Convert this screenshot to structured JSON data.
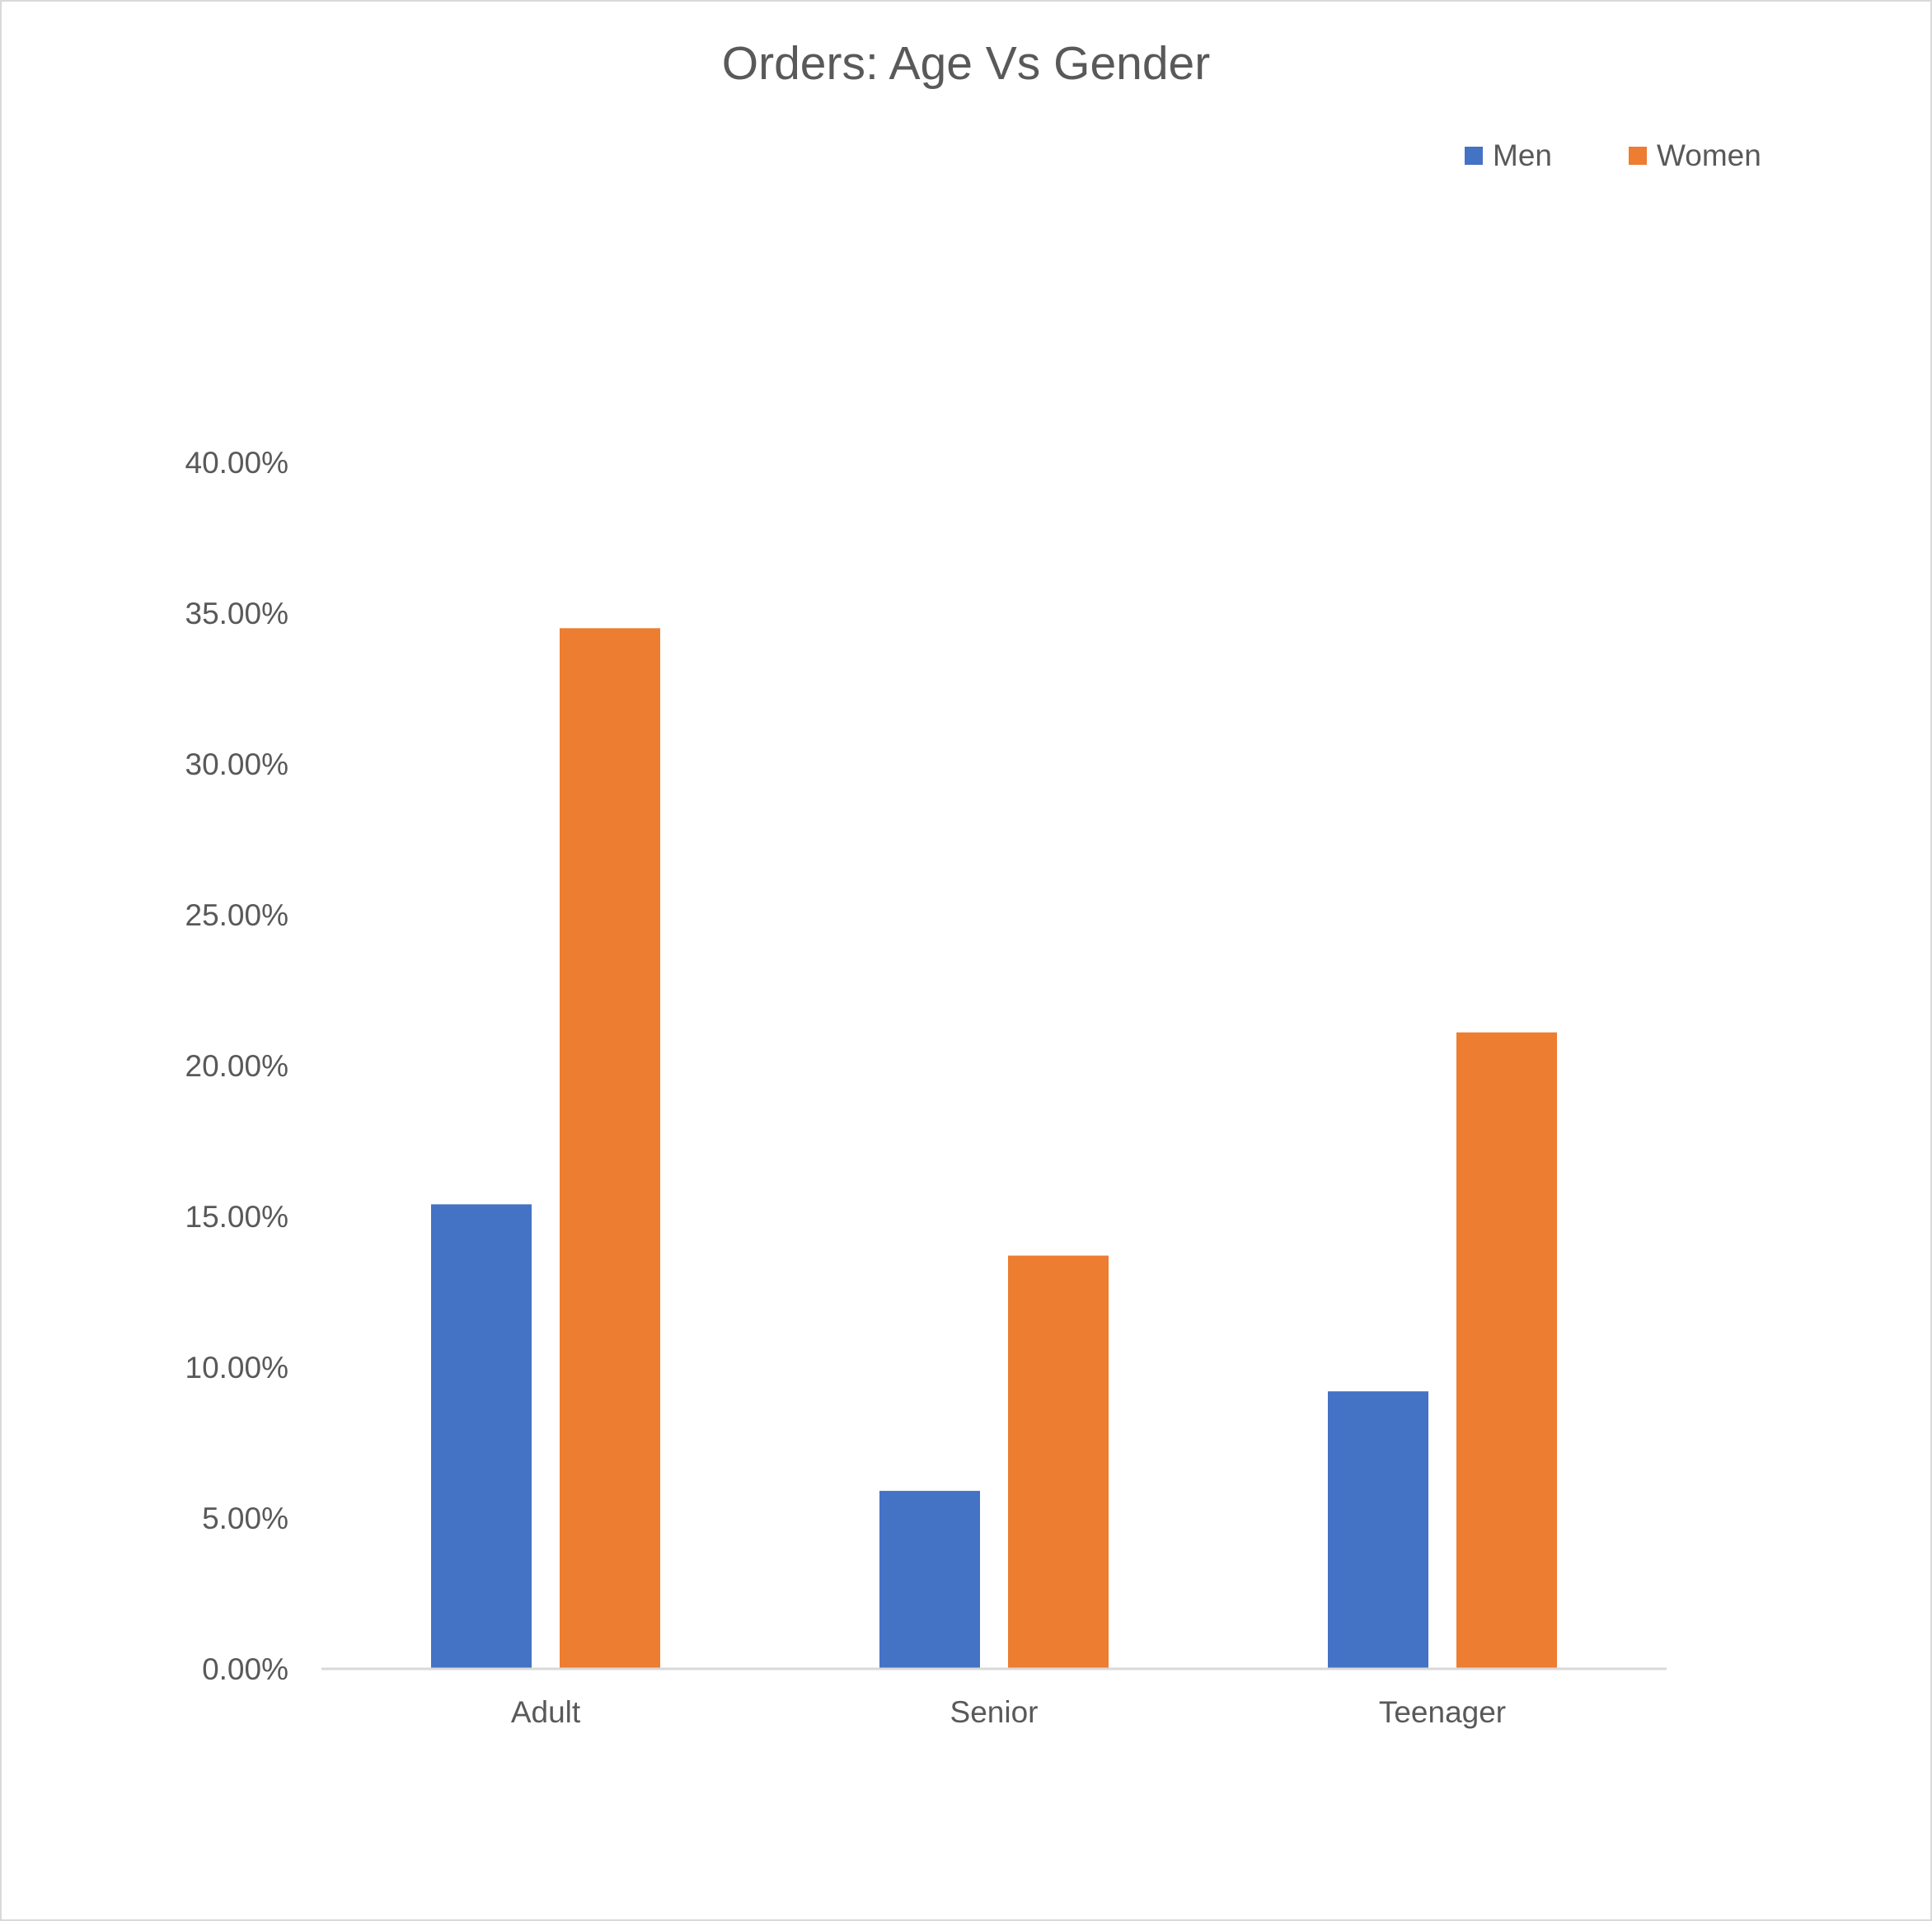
{
  "chart_data": {
    "type": "bar",
    "title": "Orders: Age Vs Gender",
    "xlabel": "",
    "ylabel": "",
    "categories": [
      "Adult",
      "Senior",
      "Teenager"
    ],
    "series": [
      {
        "name": "Men",
        "color": "#4472C4",
        "values": [
          15.4,
          5.9,
          9.2
        ]
      },
      {
        "name": "Women",
        "color": "#ED7D31",
        "values": [
          34.5,
          13.7,
          21.1
        ]
      }
    ],
    "ylim": [
      0,
      40
    ],
    "yticks": [
      0,
      5,
      10,
      15,
      20,
      25,
      30,
      35,
      40
    ],
    "ytick_labels": [
      "0.00%",
      "5.00%",
      "10.00%",
      "15.00%",
      "20.00%",
      "25.00%",
      "30.00%",
      "35.00%",
      "40.00%"
    ],
    "grid": false,
    "legend_position": "top-right"
  }
}
